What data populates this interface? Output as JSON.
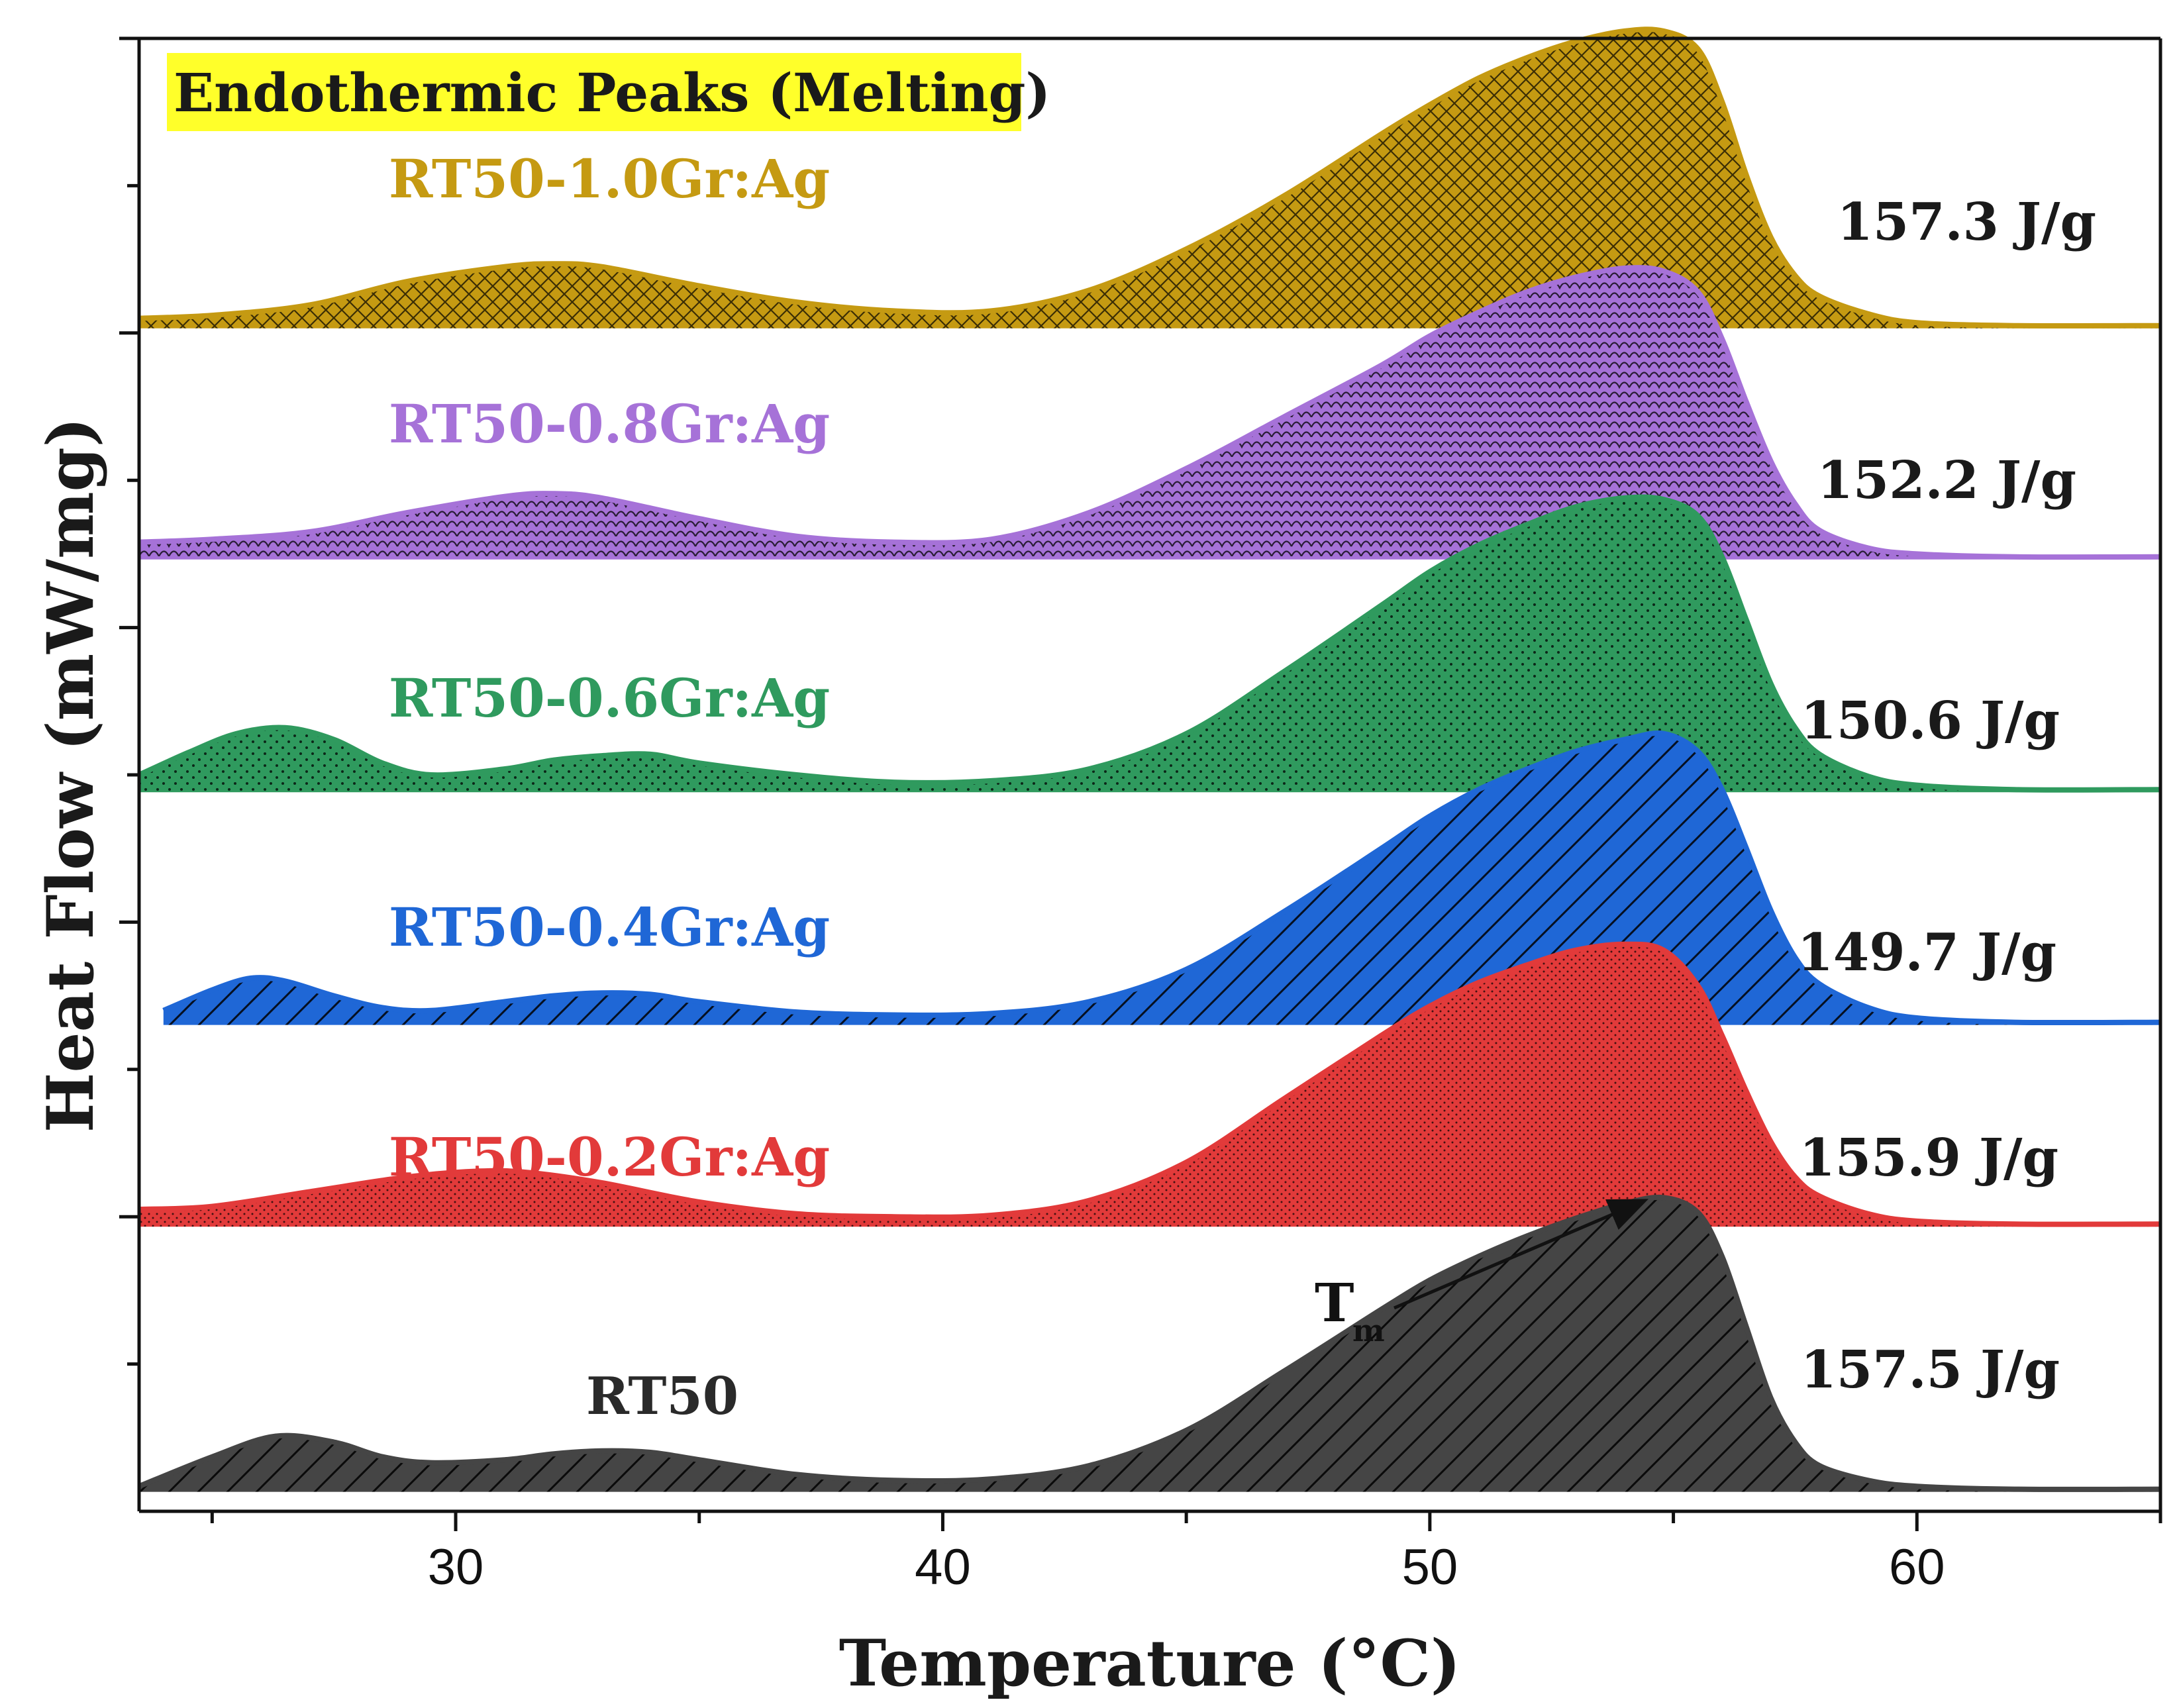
{
  "chart_data": {
    "type": "area",
    "title": "Endothermic Peaks (Melting)",
    "xlabel": "Temperature (°C)",
    "ylabel": "Heat Flow (mW/mg)",
    "x_ticks": [
      "30",
      "40",
      "50",
      "60"
    ],
    "x_tick_values": [
      30,
      40,
      50,
      60
    ],
    "xlim": [
      23.5,
      65
    ],
    "ylim": [
      0,
      10
    ],
    "y_ticks_labeled": false,
    "grid": false,
    "legend": "none",
    "tm_annotation": {
      "label": "T",
      "subscript": "m",
      "x": 54.5,
      "series": "RT50"
    },
    "series": [
      {
        "name": "RT50-1.0Gr:Ag",
        "enthalpy_label": "157.3 J/g",
        "color": "#c59a12",
        "pattern": "crosshatch",
        "offset": 8.05,
        "x": [
          23.5,
          25,
          27,
          29,
          31,
          32,
          33,
          35,
          37,
          39,
          41,
          43,
          45,
          47,
          49,
          50,
          51,
          52,
          53,
          54,
          54.8,
          55.5,
          56,
          56.5,
          57,
          57.5,
          58,
          59,
          60,
          62,
          65
        ],
        "y": [
          0.05,
          0.07,
          0.14,
          0.3,
          0.4,
          0.42,
          0.4,
          0.27,
          0.16,
          0.1,
          0.1,
          0.24,
          0.52,
          0.88,
          1.3,
          1.5,
          1.68,
          1.82,
          1.93,
          2.0,
          2.0,
          1.88,
          1.52,
          1.02,
          0.6,
          0.34,
          0.2,
          0.08,
          0.02,
          0.0,
          0.0
        ]
      },
      {
        "name": "RT50-0.8Gr:Ag",
        "enthalpy_label": "152.2 J/g",
        "color": "#a672d8",
        "pattern": "scales",
        "offset": 6.48,
        "x": [
          23.5,
          25,
          27,
          29,
          31,
          32,
          33,
          35,
          37,
          39,
          41,
          43,
          45,
          47,
          49,
          50,
          51,
          52,
          53,
          54,
          54.8,
          55.5,
          56,
          56.5,
          57,
          57.5,
          58,
          59,
          60,
          62,
          65
        ],
        "y": [
          0.1,
          0.12,
          0.17,
          0.3,
          0.41,
          0.43,
          0.4,
          0.26,
          0.14,
          0.1,
          0.12,
          0.3,
          0.6,
          0.95,
          1.3,
          1.5,
          1.66,
          1.8,
          1.9,
          1.96,
          1.94,
          1.8,
          1.48,
          1.05,
          0.65,
          0.36,
          0.18,
          0.06,
          0.02,
          0.0,
          0.0
        ]
      },
      {
        "name": "RT50-0.6Gr:Ag",
        "enthalpy_label": "150.6 J/g",
        "color": "#2f9a5e",
        "pattern": "dots",
        "offset": 4.9,
        "x": [
          23.5,
          24.5,
          25.5,
          26.5,
          27.5,
          28.5,
          29.5,
          31,
          32,
          33,
          34,
          35,
          37,
          39,
          41,
          43,
          45,
          47,
          49,
          50,
          51,
          52,
          53,
          54,
          54.8,
          55.5,
          56,
          56.5,
          57,
          57.5,
          58,
          59,
          60,
          62,
          65
        ],
        "y": [
          0.1,
          0.25,
          0.38,
          0.42,
          0.34,
          0.18,
          0.1,
          0.14,
          0.2,
          0.23,
          0.24,
          0.18,
          0.1,
          0.05,
          0.06,
          0.14,
          0.38,
          0.8,
          1.25,
          1.48,
          1.66,
          1.8,
          1.92,
          1.98,
          1.97,
          1.86,
          1.58,
          1.15,
          0.72,
          0.42,
          0.24,
          0.09,
          0.03,
          0.0,
          0.0
        ]
      },
      {
        "name": "RT50-0.4Gr:Ag",
        "enthalpy_label": "149.7 J/g",
        "color": "#1f67d6",
        "pattern": "diagonal",
        "offset": 3.32,
        "x": [
          24,
          25,
          25.8,
          26.5,
          27.5,
          28.5,
          29.5,
          31,
          32,
          33,
          34,
          35,
          37,
          39,
          41,
          43,
          45,
          47,
          49,
          50,
          51,
          52,
          53,
          54,
          54.8,
          55.5,
          56,
          56.5,
          57,
          57.5,
          58,
          59,
          60,
          62,
          65
        ],
        "y": [
          0.08,
          0.22,
          0.3,
          0.28,
          0.18,
          0.1,
          0.08,
          0.14,
          0.18,
          0.2,
          0.19,
          0.14,
          0.07,
          0.05,
          0.06,
          0.14,
          0.36,
          0.75,
          1.18,
          1.4,
          1.58,
          1.72,
          1.84,
          1.92,
          1.96,
          1.84,
          1.58,
          1.18,
          0.76,
          0.44,
          0.26,
          0.1,
          0.03,
          0.0,
          0.0
        ]
      },
      {
        "name": "RT50-0.2Gr:Ag",
        "enthalpy_label": "155.9 J/g",
        "color": "#e23a3a",
        "pattern": "fine-dots",
        "offset": 1.95,
        "x": [
          23.5,
          25,
          27,
          29,
          30.5,
          31.5,
          33,
          35,
          37,
          39,
          41,
          43,
          45,
          47,
          49,
          50,
          51,
          52,
          53,
          54,
          54.8,
          55.5,
          56,
          56.5,
          57,
          57.5,
          58,
          59,
          60,
          62,
          65
        ],
        "y": [
          0.1,
          0.12,
          0.22,
          0.32,
          0.36,
          0.35,
          0.28,
          0.15,
          0.07,
          0.05,
          0.06,
          0.16,
          0.42,
          0.85,
          1.28,
          1.48,
          1.64,
          1.76,
          1.86,
          1.9,
          1.86,
          1.62,
          1.28,
          0.9,
          0.56,
          0.32,
          0.19,
          0.07,
          0.02,
          0.0,
          0.0
        ]
      },
      {
        "name": "RT50",
        "enthalpy_label": "157.5 J/g",
        "color": "#454545",
        "pattern": "diagonal",
        "offset": 0.15,
        "x": [
          23.5,
          25,
          26.3,
          27.5,
          28.5,
          29.5,
          31,
          32,
          33,
          34,
          35,
          37,
          39,
          41,
          43,
          45,
          47,
          49,
          50,
          51,
          52,
          53,
          54,
          54.8,
          55.5,
          56,
          56.5,
          57,
          57.5,
          58,
          59,
          60,
          62,
          65
        ],
        "y": [
          0.02,
          0.22,
          0.36,
          0.32,
          0.22,
          0.18,
          0.2,
          0.24,
          0.26,
          0.25,
          0.2,
          0.1,
          0.06,
          0.07,
          0.16,
          0.4,
          0.8,
          1.22,
          1.42,
          1.58,
          1.72,
          1.84,
          1.94,
          1.98,
          1.88,
          1.58,
          1.1,
          0.62,
          0.32,
          0.16,
          0.06,
          0.02,
          0.0,
          0.0
        ]
      }
    ]
  }
}
